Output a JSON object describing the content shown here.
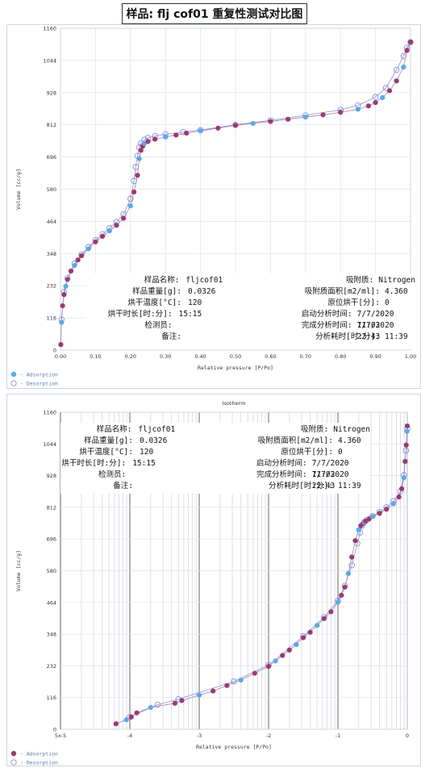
{
  "page_title": "样品: flj cof01 重复性测试对比图",
  "info": {
    "rows": [
      {
        "k1": "样品名称:",
        "v1": "fljcof01",
        "k2": "吸附质:",
        "v2": "Nitrogen"
      },
      {
        "k1": "样品重量[g]:",
        "v1": "0.0326",
        "k2": "吸附质面积[m2/ml]:",
        "v2": "4.360"
      },
      {
        "k1": "烘干温度[°C]:",
        "v1": "120",
        "k2": "原位烘干[分]:",
        "v2": "0"
      },
      {
        "k1": "烘干时长[时:分]:",
        "v1": "15:15",
        "k2": "启动分析时间:",
        "v2": "7/7/2020 11:03"
      },
      {
        "k1": "检测员:",
        "v1": "",
        "k2": "完成分析时间:",
        "v2": "7/7/2020 22:43"
      },
      {
        "k1": "备注:",
        "v1": "",
        "k2": "分析耗时[时:分]:",
        "v2": "11:39"
      }
    ]
  },
  "chart_data": [
    {
      "type": "scatter",
      "title": "",
      "xlabel": "Relative pressure [P/Po]",
      "ylabel": "Volume [cc/g]",
      "xlim": [
        0,
        1
      ],
      "ylim": [
        0,
        1160
      ],
      "xticks": [
        "0.00",
        "0.10",
        "0.20",
        "0.30",
        "0.40",
        "0.50",
        "0.60",
        "0.70",
        "0.80",
        "0.90",
        "1.00"
      ],
      "yticks": [
        "0",
        "116",
        "232",
        "348",
        "464",
        "580",
        "696",
        "812",
        "928",
        "1044",
        "1160"
      ],
      "legend": [
        "- Adsorption",
        "- Desorption"
      ],
      "colors": {
        "adsorption_a": "#9b3a6e",
        "adsorption_b": "#5aa9e6",
        "desorption": "#8a8fd6"
      },
      "series": [
        {
          "name": "- Adsorption",
          "x": [
            0.001,
            0.003,
            0.006,
            0.01,
            0.015,
            0.02,
            0.03,
            0.04,
            0.05,
            0.06,
            0.08,
            0.1,
            0.12,
            0.14,
            0.16,
            0.18,
            0.2,
            0.21,
            0.22,
            0.225,
            0.23,
            0.235,
            0.24,
            0.25,
            0.27,
            0.3,
            0.33,
            0.36,
            0.4,
            0.45,
            0.5,
            0.55,
            0.6,
            0.65,
            0.7,
            0.75,
            0.8,
            0.85,
            0.88,
            0.9,
            0.92,
            0.94,
            0.96,
            0.98,
            0.99,
            1.0
          ],
          "y": [
            20,
            100,
            160,
            200,
            230,
            255,
            285,
            305,
            325,
            340,
            365,
            390,
            410,
            430,
            450,
            475,
            520,
            570,
            630,
            690,
            720,
            735,
            745,
            752,
            760,
            768,
            775,
            782,
            790,
            800,
            810,
            817,
            824,
            832,
            840,
            848,
            857,
            868,
            880,
            892,
            910,
            935,
            970,
            1020,
            1080,
            1110
          ]
        },
        {
          "name": "- Desorption",
          "x": [
            0.003,
            0.01,
            0.02,
            0.04,
            0.06,
            0.08,
            0.1,
            0.12,
            0.14,
            0.16,
            0.18,
            0.2,
            0.21,
            0.215,
            0.22,
            0.225,
            0.23,
            0.24,
            0.25,
            0.27,
            0.3,
            0.35,
            0.4,
            0.5,
            0.6,
            0.7,
            0.8,
            0.85,
            0.9,
            0.93,
            0.96,
            0.98,
            0.99,
            1.0
          ],
          "y": [
            110,
            210,
            260,
            312,
            345,
            372,
            396,
            418,
            440,
            462,
            490,
            545,
            610,
            660,
            700,
            730,
            745,
            758,
            765,
            772,
            778,
            786,
            793,
            812,
            828,
            846,
            866,
            882,
            912,
            945,
            1010,
            1060,
            1090,
            1110
          ]
        }
      ]
    },
    {
      "type": "scatter",
      "title": "Isotherm",
      "xlabel": "Relative pressure [P/Po]",
      "ylabel": "Volume [cc/g]",
      "xscale": "log",
      "xlim": [
        -5,
        0
      ],
      "ylim": [
        0,
        1160
      ],
      "xticks": [
        "5x-5",
        "-4",
        "-3",
        "-2",
        "-1",
        "0"
      ],
      "yticks": [
        "0",
        "116",
        "232",
        "348",
        "464",
        "580",
        "696",
        "812",
        "928",
        "1044",
        "1160"
      ],
      "legend": [
        "- Adsorption",
        "- Desorption"
      ],
      "colors": {
        "adsorption": "#9b3a6e",
        "adsorption_b": "#5aa9e6",
        "desorption": "#8a8fd6"
      },
      "series": [
        {
          "name": "- Adsorption",
          "x": [
            -4.2,
            -4.05,
            -3.98,
            -3.9,
            -3.7,
            -3.35,
            -3.25,
            -3.0,
            -2.8,
            -2.6,
            -2.4,
            -2.2,
            -2.0,
            -1.9,
            -1.8,
            -1.7,
            -1.6,
            -1.5,
            -1.4,
            -1.3,
            -1.2,
            -1.1,
            -1.0,
            -0.95,
            -0.9,
            -0.85,
            -0.8,
            -0.75,
            -0.7,
            -0.67,
            -0.64,
            -0.62,
            -0.6,
            -0.55,
            -0.5,
            -0.4,
            -0.3,
            -0.2,
            -0.12,
            -0.08,
            -0.05,
            -0.03,
            -0.015,
            -0.005,
            0.0
          ],
          "y": [
            20,
            35,
            45,
            60,
            80,
            95,
            105,
            125,
            140,
            160,
            180,
            205,
            230,
            250,
            270,
            290,
            310,
            335,
            355,
            380,
            405,
            430,
            465,
            490,
            520,
            570,
            630,
            690,
            730,
            745,
            752,
            757,
            762,
            770,
            778,
            790,
            805,
            825,
            850,
            880,
            920,
            980,
            1040,
            1090,
            1110
          ]
        },
        {
          "name": "- Desorption",
          "x": [
            -4.0,
            -3.6,
            -3.3,
            -2.5,
            -2.0,
            -1.5,
            -1.2,
            -1.0,
            -0.9,
            -0.8,
            -0.72,
            -0.68,
            -0.65,
            -0.62,
            -0.58,
            -0.5,
            -0.4,
            -0.3,
            -0.2,
            -0.1,
            -0.05,
            -0.02,
            0.0
          ],
          "y": [
            45,
            90,
            110,
            175,
            235,
            340,
            410,
            470,
            525,
            600,
            680,
            720,
            745,
            758,
            766,
            780,
            795,
            812,
            835,
            870,
            930,
            1020,
            1100
          ]
        }
      ]
    }
  ]
}
